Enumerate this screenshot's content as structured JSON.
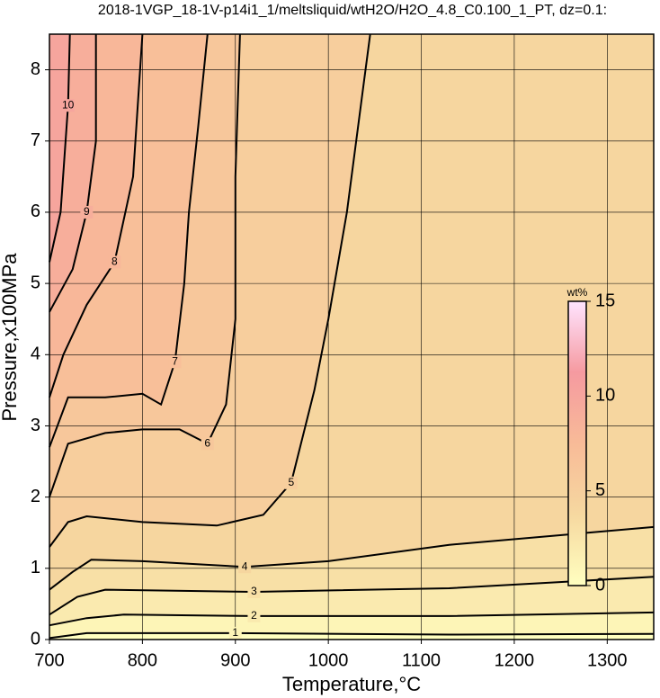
{
  "chart_data": {
    "type": "contour",
    "title": "2018-1VGP_18-1V-p14i1_1/meltsliquid/wtH2O/H2O_4.8_C0.100_1_PT, dz=0.1:",
    "x_label": "Temperature,°C",
    "y_label": "Pressure,x100MPa",
    "xlim": [
      700,
      1350
    ],
    "ylim": [
      0,
      8.5
    ],
    "xticks": [
      700,
      800,
      900,
      1000,
      1100,
      1200,
      1300
    ],
    "yticks": [
      0,
      1,
      2,
      3,
      4,
      5,
      6,
      7,
      8
    ],
    "grid": true,
    "contours": [
      {
        "level": 1,
        "x": [
          700,
          740,
          900,
          1130,
          1350
        ],
        "y": [
          0.02,
          0.09,
          0.09,
          0.07,
          0.08
        ]
      },
      {
        "level": 2,
        "x": [
          700,
          740,
          780,
          920,
          1130,
          1350
        ],
        "y": [
          0.2,
          0.3,
          0.35,
          0.33,
          0.33,
          0.38
        ]
      },
      {
        "level": 3,
        "x": [
          700,
          730,
          760,
          920,
          1130,
          1350
        ],
        "y": [
          0.35,
          0.6,
          0.7,
          0.67,
          0.72,
          0.88
        ]
      },
      {
        "level": 4,
        "x": [
          700,
          725,
          745,
          800,
          910,
          1000,
          1130,
          1350
        ],
        "y": [
          0.7,
          0.95,
          1.12,
          1.1,
          1.02,
          1.1,
          1.33,
          1.58
        ]
      },
      {
        "level": 5,
        "x": [
          700,
          720,
          740,
          800,
          880,
          930,
          960,
          985,
          1000,
          1020,
          1035,
          1045
        ],
        "y": [
          1.3,
          1.65,
          1.73,
          1.65,
          1.6,
          1.75,
          2.2,
          3.5,
          4.5,
          6,
          7.5,
          8.5
        ]
      },
      {
        "level": 6,
        "x": [
          700,
          720,
          760,
          800,
          840,
          870,
          890,
          900,
          900,
          905
        ],
        "y": [
          2.0,
          2.75,
          2.9,
          2.95,
          2.95,
          2.75,
          3.3,
          4.5,
          6.5,
          8.5
        ]
      },
      {
        "level": 7,
        "x": [
          700,
          720,
          760,
          800,
          820,
          835,
          845,
          850,
          860,
          870
        ],
        "y": [
          2.7,
          3.4,
          3.4,
          3.45,
          3.3,
          3.9,
          5,
          6,
          7.2,
          8.5
        ]
      },
      {
        "level": 8,
        "x": [
          700,
          715,
          740,
          770,
          790,
          795,
          800
        ],
        "y": [
          3.4,
          4.0,
          4.7,
          5.3,
          6.5,
          7.5,
          8.5
        ]
      },
      {
        "level": 9,
        "x": [
          700,
          725,
          740,
          750,
          750
        ],
        "y": [
          4.6,
          5.2,
          6.0,
          7.0,
          8.5
        ]
      },
      {
        "level": 10,
        "x": [
          700,
          712,
          720,
          722
        ],
        "y": [
          5.3,
          6.0,
          7.5,
          8.5
        ]
      }
    ],
    "colorbar": {
      "label": "wt%",
      "lim": [
        0,
        15
      ],
      "ticks": [
        0,
        5,
        10,
        15
      ],
      "colors": [
        "#ffffc0",
        "#f6d8a0",
        "#f8bb98",
        "#f59aa0",
        "#ffe4ff"
      ]
    }
  }
}
